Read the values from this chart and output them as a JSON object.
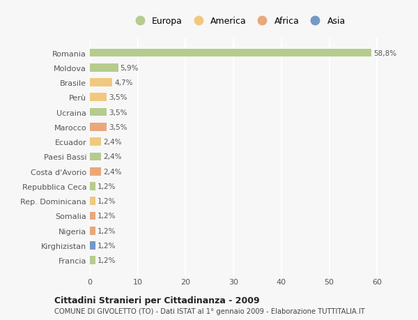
{
  "countries": [
    "Romania",
    "Moldova",
    "Brasile",
    "Perù",
    "Ucraina",
    "Marocco",
    "Ecuador",
    "Paesi Bassi",
    "Costa d'Avorio",
    "Repubblica Ceca",
    "Rep. Dominicana",
    "Somalia",
    "Nigeria",
    "Kirghizistan",
    "Francia"
  ],
  "values": [
    58.8,
    5.9,
    4.7,
    3.5,
    3.5,
    3.5,
    2.4,
    2.4,
    2.4,
    1.2,
    1.2,
    1.2,
    1.2,
    1.2,
    1.2
  ],
  "labels": [
    "58,8%",
    "5,9%",
    "4,7%",
    "3,5%",
    "3,5%",
    "3,5%",
    "2,4%",
    "2,4%",
    "2,4%",
    "1,2%",
    "1,2%",
    "1,2%",
    "1,2%",
    "1,2%",
    "1,2%"
  ],
  "continent": [
    "Europa",
    "Europa",
    "America",
    "America",
    "Europa",
    "Africa",
    "America",
    "Europa",
    "Africa",
    "Europa",
    "America",
    "Africa",
    "Africa",
    "Asia",
    "Europa"
  ],
  "colors": {
    "Europa": "#b5cc8e",
    "America": "#f0c97f",
    "Africa": "#e8a87c",
    "Asia": "#7399c6"
  },
  "legend_order": [
    "Europa",
    "America",
    "Africa",
    "Asia"
  ],
  "title1": "Cittadini Stranieri per Cittadinanza - 2009",
  "title2": "COMUNE DI GIVOLETTO (TO) - Dati ISTAT al 1° gennaio 2009 - Elaborazione TUTTITALIA.IT",
  "xlim": [
    0,
    62
  ],
  "xticks": [
    0,
    10,
    20,
    30,
    40,
    50,
    60
  ],
  "bg_color": "#f7f7f7",
  "grid_color": "#ffffff",
  "bar_height": 0.55
}
